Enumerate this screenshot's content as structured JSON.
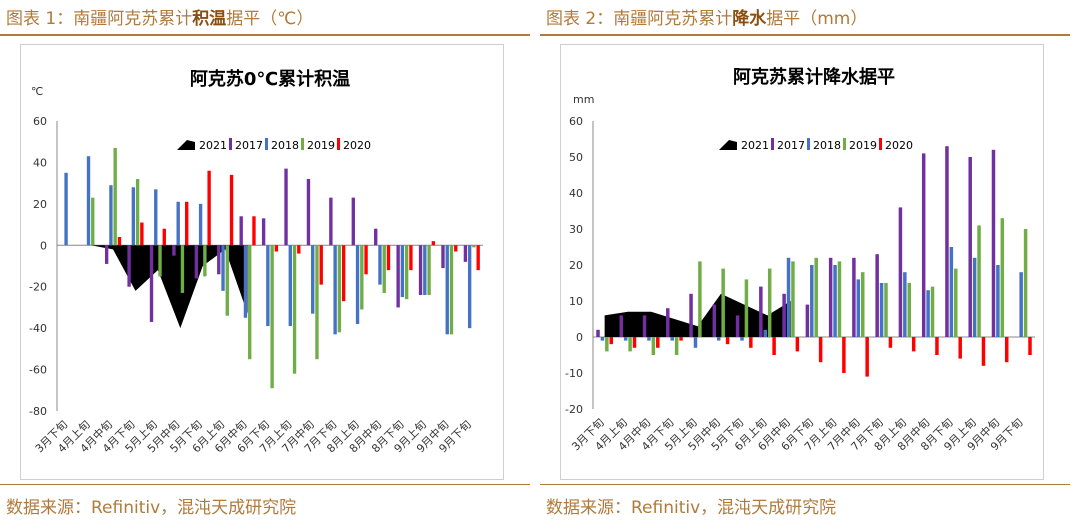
{
  "left": {
    "caption": {
      "prefix": "图表 1：南疆阿克苏累计",
      "bold": "积温",
      "suffix": "据平（℃）"
    },
    "source": "数据来源：Refinitiv，混沌天成研究院"
  },
  "right": {
    "caption": {
      "prefix": "图表 2：南疆阿克苏累计",
      "bold": "降水",
      "suffix": "据平（mm）"
    },
    "source": "数据来源：Refinitiv，混沌天成研究院"
  },
  "chart_data": [
    {
      "type": "bar",
      "title": "阿克苏0℃累计积温",
      "ylabel": "℃",
      "ylim": [
        -80,
        60
      ],
      "yticks": [
        -80,
        -60,
        -40,
        -20,
        0,
        20,
        40,
        60
      ],
      "legend_position": "top-right",
      "categories": [
        "3月下旬",
        "4月上旬",
        "4月中旬",
        "4月下旬",
        "5月上旬",
        "5月中旬",
        "5月下旬",
        "6月上旬",
        "6月中旬",
        "6月下旬",
        "7月上旬",
        "7月中旬",
        "7月下旬",
        "8月上旬",
        "8月中旬",
        "8月下旬",
        "9月上旬",
        "9月中旬",
        "9月下旬"
      ],
      "series": [
        {
          "name": "2021",
          "type": "area",
          "color": "#000000",
          "values": [
            0,
            0,
            -2,
            -22,
            -12,
            -40,
            -10,
            -2,
            -33,
            null,
            null,
            null,
            null,
            null,
            null,
            null,
            null,
            null,
            null
          ]
        },
        {
          "name": "2017",
          "color": "#7030a0",
          "values": [
            0,
            0,
            -9,
            -20,
            -37,
            -5,
            -16,
            -14,
            14,
            13,
            37,
            32,
            23,
            23,
            8,
            -30,
            -24,
            -11,
            -8
          ]
        },
        {
          "name": "2018",
          "color": "#4472c4",
          "values": [
            35,
            43,
            29,
            28,
            27,
            21,
            20,
            -22,
            -35,
            -39,
            -39,
            -33,
            -43,
            -38,
            -19,
            -25,
            -24,
            -43,
            -40
          ]
        },
        {
          "name": "2019",
          "color": "#70ad47",
          "values": [
            0,
            23,
            47,
            32,
            -15,
            -23,
            -15,
            -34,
            -55,
            -69,
            -62,
            -55,
            -42,
            -31,
            -23,
            -26,
            -24,
            -43,
            -1
          ]
        },
        {
          "name": "2020",
          "color": "#ff0000",
          "values": [
            0,
            0,
            4,
            11,
            8,
            21,
            36,
            34,
            14,
            -3,
            -4,
            -19,
            -27,
            -14,
            -12,
            -12,
            2,
            -3,
            -12
          ]
        }
      ]
    },
    {
      "type": "bar",
      "title": "阿克苏累计降水据平",
      "ylabel": "mm",
      "ylim": [
        -20,
        60
      ],
      "yticks": [
        -20,
        -10,
        0,
        10,
        20,
        30,
        40,
        50,
        60
      ],
      "legend_position": "top-left",
      "categories": [
        "3月下旬",
        "4月上旬",
        "4月中旬",
        "4月下旬",
        "5月上旬",
        "5月中旬",
        "5月下旬",
        "6月上旬",
        "6月中旬",
        "6月下旬",
        "7月上旬",
        "7月中旬",
        "7月下旬",
        "8月上旬",
        "8月中旬",
        "8月下旬",
        "9月上旬",
        "9月中旬",
        "9月下旬"
      ],
      "series": [
        {
          "name": "2021",
          "type": "area",
          "color": "#000000",
          "values": [
            6,
            7,
            7,
            5,
            3,
            12,
            9,
            6,
            10,
            null,
            null,
            null,
            null,
            null,
            null,
            null,
            null,
            null,
            null
          ]
        },
        {
          "name": "2017",
          "color": "#7030a0",
          "values": [
            2,
            6,
            6,
            8,
            12,
            9,
            6,
            14,
            12,
            9,
            22,
            22,
            23,
            36,
            51,
            53,
            50,
            52,
            0
          ]
        },
        {
          "name": "2018",
          "color": "#4472c4",
          "values": [
            -1,
            -1,
            -1,
            -1,
            -3,
            -1,
            -1,
            2,
            22,
            20,
            20,
            16,
            15,
            18,
            13,
            25,
            22,
            20,
            18
          ]
        },
        {
          "name": "2019",
          "color": "#70ad47",
          "values": [
            -4,
            -4,
            -5,
            -5,
            21,
            19,
            16,
            19,
            21,
            22,
            21,
            18,
            15,
            15,
            14,
            19,
            31,
            33,
            30
          ]
        },
        {
          "name": "2020",
          "color": "#ff0000",
          "values": [
            -2,
            -3,
            -3,
            -1,
            0,
            -2,
            -3,
            -5,
            -4,
            -7,
            -10,
            -11,
            -3,
            -4,
            -5,
            -6,
            -8,
            -7,
            -5
          ]
        }
      ]
    }
  ]
}
